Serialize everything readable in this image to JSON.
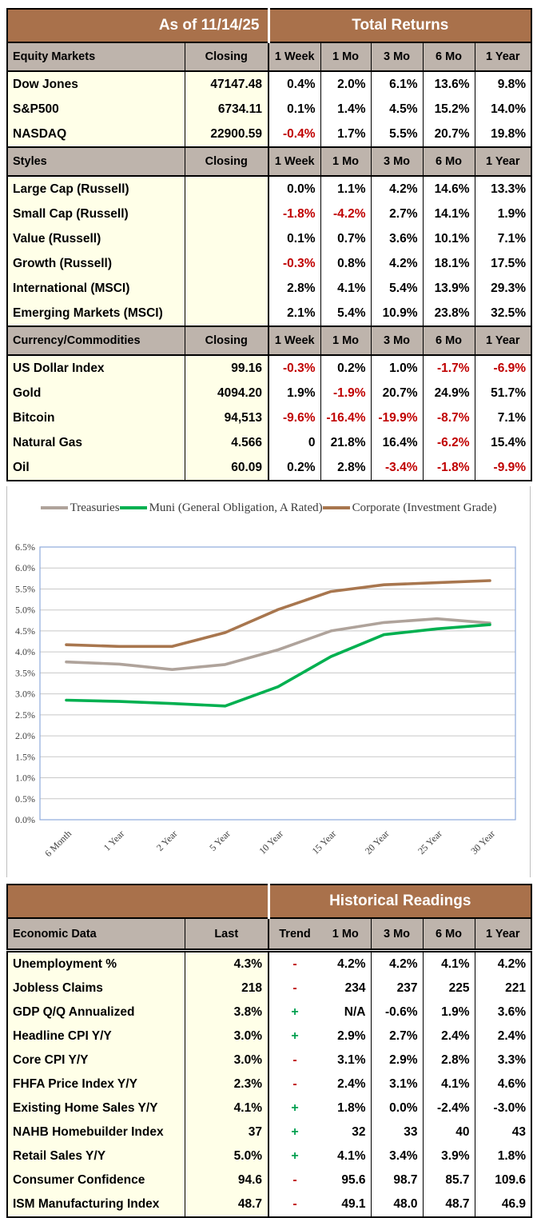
{
  "top_table": {
    "as_of": "As of  11/14/25",
    "title": "Total Returns",
    "closing_label": "Closing",
    "period_headers": [
      "1 Week",
      "1 Mo",
      "3 Mo",
      "6 Mo",
      "1 Year"
    ],
    "sections": [
      {
        "label": "Equity Markets",
        "rows": [
          {
            "name": "Dow Jones",
            "closing": "47147.48",
            "returns": [
              "0.4%",
              "2.0%",
              "6.1%",
              "13.6%",
              "9.8%"
            ]
          },
          {
            "name": "S&P500",
            "closing": "6734.11",
            "returns": [
              "0.1%",
              "1.4%",
              "4.5%",
              "15.2%",
              "14.0%"
            ]
          },
          {
            "name": "NASDAQ",
            "closing": "22900.59",
            "returns": [
              "-0.4%",
              "1.7%",
              "5.5%",
              "20.7%",
              "19.8%"
            ]
          }
        ]
      },
      {
        "label": "Styles",
        "rows": [
          {
            "name": "Large Cap (Russell)",
            "closing": "",
            "returns": [
              "0.0%",
              "1.1%",
              "4.2%",
              "14.6%",
              "13.3%"
            ]
          },
          {
            "name": "Small Cap (Russell)",
            "closing": "",
            "returns": [
              "-1.8%",
              "-4.2%",
              "2.7%",
              "14.1%",
              "1.9%"
            ]
          },
          {
            "name": "Value (Russell)",
            "closing": "",
            "returns": [
              "0.1%",
              "0.7%",
              "3.6%",
              "10.1%",
              "7.1%"
            ]
          },
          {
            "name": "Growth (Russell)",
            "closing": "",
            "returns": [
              "-0.3%",
              "0.8%",
              "4.2%",
              "18.1%",
              "17.5%"
            ]
          },
          {
            "name": "International (MSCI)",
            "closing": "",
            "returns": [
              "2.8%",
              "4.1%",
              "5.4%",
              "13.9%",
              "29.3%"
            ]
          },
          {
            "name": "Emerging Markets (MSCI)",
            "closing": "",
            "returns": [
              "2.1%",
              "5.4%",
              "10.9%",
              "23.8%",
              "32.5%"
            ]
          }
        ]
      },
      {
        "label": "Currency/Commodities",
        "rows": [
          {
            "name": "US Dollar Index",
            "closing": "99.16",
            "returns": [
              "-0.3%",
              "0.2%",
              "1.0%",
              "-1.7%",
              "-6.9%"
            ]
          },
          {
            "name": "Gold",
            "closing": "4094.20",
            "returns": [
              "1.9%",
              "-1.9%",
              "20.7%",
              "24.9%",
              "51.7%"
            ]
          },
          {
            "name": "Bitcoin",
            "closing": "94,513",
            "returns": [
              "-9.6%",
              "-16.4%",
              "-19.9%",
              "-8.7%",
              "7.1%"
            ]
          },
          {
            "name": "Natural Gas",
            "closing": "4.566",
            "returns": [
              "0",
              "21.8%",
              "16.4%",
              "-6.2%",
              "15.4%"
            ]
          },
          {
            "name": "Oil",
            "closing": "60.09",
            "returns": [
              "0.2%",
              "2.8%",
              "-3.4%",
              "-1.8%",
              "-9.9%"
            ]
          }
        ]
      }
    ]
  },
  "chart_data": {
    "type": "line",
    "categories": [
      "6 Month",
      "1 Year",
      "2 Year",
      "5 Year",
      "10 Year",
      "15 Year",
      "20 Year",
      "25 Year",
      "30 Year"
    ],
    "series": [
      {
        "name": "Treasuries",
        "color": "#AFA39B",
        "values": [
          3.76,
          3.71,
          3.58,
          3.7,
          4.05,
          4.5,
          4.7,
          4.79,
          4.69
        ]
      },
      {
        "name": "Muni (General Obligation, A Rated)",
        "color": "#00B050",
        "values": [
          2.85,
          2.82,
          2.77,
          2.71,
          3.17,
          3.89,
          4.41,
          4.55,
          4.65
        ]
      },
      {
        "name": "Corporate (Investment Grade)",
        "color": "#A8764E",
        "values": [
          4.17,
          4.13,
          4.13,
          4.46,
          5.01,
          5.44,
          5.6,
          5.65,
          5.7
        ]
      }
    ],
    "title": "",
    "xlabel": "",
    "ylabel": "",
    "ylim": [
      0,
      6.5
    ],
    "ytick_step": 0.5,
    "ytick_format": "percent_one_decimal",
    "grid": true,
    "legend_position": "top",
    "plot_border_color": "#8EAADB",
    "gridline_color": "#C8C8C8"
  },
  "bottom_table": {
    "title": "Historical Readings",
    "col_headers": [
      "Economic Data",
      "Last",
      "Trend",
      "1 Mo",
      "3 Mo",
      "6 Mo",
      "1 Year"
    ],
    "rows": [
      {
        "name": "Unemployment %",
        "last": "4.3%",
        "trend": "-",
        "readings": [
          "4.2%",
          "4.2%",
          "4.1%",
          "4.2%"
        ]
      },
      {
        "name": "Jobless Claims",
        "last": "218",
        "trend": "-",
        "readings": [
          "234",
          "237",
          "225",
          "221"
        ]
      },
      {
        "name": "GDP Q/Q Annualized",
        "last": "3.8%",
        "trend": "+",
        "readings": [
          "N/A",
          "-0.6%",
          "1.9%",
          "3.6%"
        ]
      },
      {
        "name": "Headline CPI Y/Y",
        "last": "3.0%",
        "trend": "+",
        "readings": [
          "2.9%",
          "2.7%",
          "2.4%",
          "2.4%"
        ]
      },
      {
        "name": "Core CPI Y/Y",
        "last": "3.0%",
        "trend": "-",
        "readings": [
          "3.1%",
          "2.9%",
          "2.8%",
          "3.3%"
        ]
      },
      {
        "name": "FHFA Price Index Y/Y",
        "last": "2.3%",
        "trend": "-",
        "readings": [
          "2.4%",
          "3.1%",
          "4.1%",
          "4.6%"
        ]
      },
      {
        "name": "Existing Home Sales Y/Y",
        "last": "4.1%",
        "trend": "+",
        "readings": [
          "1.8%",
          "0.0%",
          "-2.4%",
          "-3.0%"
        ]
      },
      {
        "name": "NAHB Homebuilder Index",
        "last": "37",
        "trend": "+",
        "readings": [
          "32",
          "33",
          "40",
          "43"
        ]
      },
      {
        "name": "Retail Sales Y/Y",
        "last": "5.0%",
        "trend": "+",
        "readings": [
          "4.1%",
          "3.4%",
          "3.9%",
          "1.8%"
        ]
      },
      {
        "name": "Consumer Confidence",
        "last": "94.6",
        "trend": "-",
        "readings": [
          "95.6",
          "98.7",
          "85.7",
          "109.6"
        ]
      },
      {
        "name": "ISM Manufacturing Index",
        "last": "48.7",
        "trend": "-",
        "readings": [
          "49.1",
          "48.0",
          "48.7",
          "46.9"
        ]
      }
    ]
  },
  "colors": {
    "header_brown": "#A9714B",
    "section_taupe": "#BEB4AC",
    "row_cream": "#FFFFE8",
    "negative_red": "#C00000",
    "trend_green": "#00A050",
    "trend_red": "#C00000"
  }
}
